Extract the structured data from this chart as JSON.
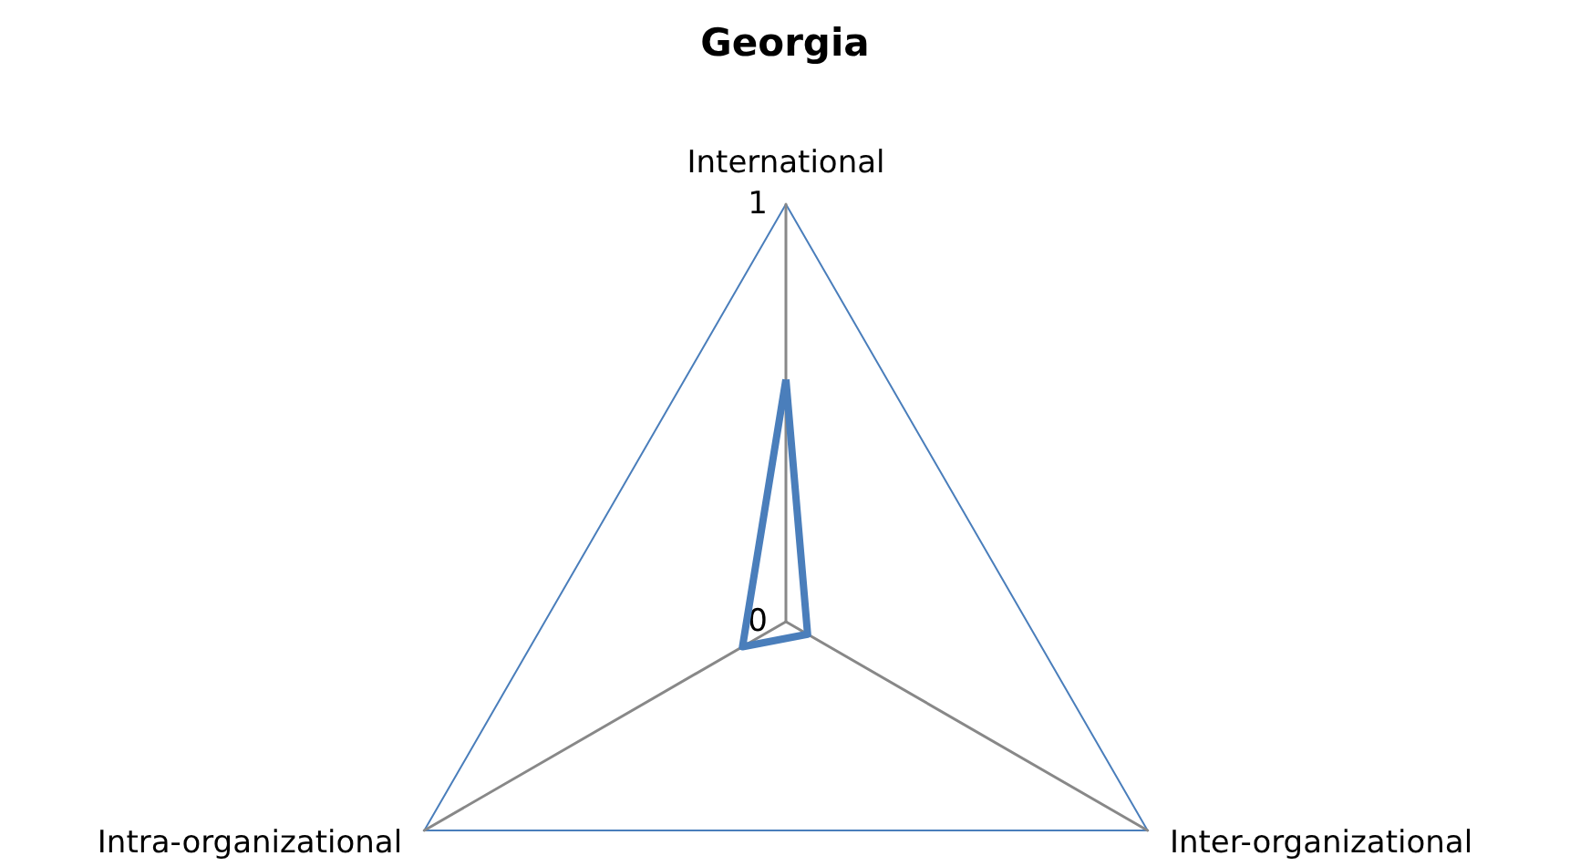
{
  "chart_data": {
    "type": "radar",
    "title": "Georgia",
    "categories": [
      "International",
      "Inter-organizational",
      "Intra-organizational"
    ],
    "series": [
      {
        "color": "#4a7ebb",
        "values": [
          0.58,
          0.06,
          0.12
        ]
      }
    ],
    "ylim": [
      0,
      1
    ],
    "yticks": [
      0,
      1
    ],
    "marker": "none"
  }
}
